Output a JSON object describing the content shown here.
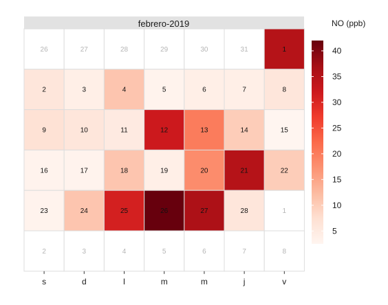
{
  "chart_data": {
    "type": "heatmap",
    "subtype": "calendar",
    "title": "febrero-2019",
    "legend": {
      "title": "NO (ppb)",
      "position": "right",
      "ticks": [
        5,
        10,
        15,
        20,
        25,
        30,
        35,
        40
      ],
      "range": [
        2.5,
        42
      ],
      "colors": [
        "#fff5f0",
        "#fee0d2",
        "#fcbba1",
        "#fc9272",
        "#fb6a4a",
        "#ef3b2c",
        "#cb181d",
        "#a50f15",
        "#67000d"
      ]
    },
    "weekday_labels": [
      "s",
      "d",
      "l",
      "m",
      "m",
      "j",
      "v"
    ],
    "rows": [
      [
        {
          "label": "26",
          "value": null,
          "in_month": false
        },
        {
          "label": "27",
          "value": null,
          "in_month": false
        },
        {
          "label": "28",
          "value": null,
          "in_month": false
        },
        {
          "label": "29",
          "value": null,
          "in_month": false
        },
        {
          "label": "30",
          "value": null,
          "in_month": false
        },
        {
          "label": "31",
          "value": null,
          "in_month": false
        },
        {
          "label": "1",
          "value": 35,
          "in_month": true
        }
      ],
      [
        {
          "label": "2",
          "value": 6,
          "in_month": true
        },
        {
          "label": "3",
          "value": 4,
          "in_month": true
        },
        {
          "label": "4",
          "value": 11,
          "in_month": true
        },
        {
          "label": "5",
          "value": 3,
          "in_month": true
        },
        {
          "label": "6",
          "value": 4,
          "in_month": true
        },
        {
          "label": "7",
          "value": 4,
          "in_month": true
        },
        {
          "label": "8",
          "value": 6,
          "in_month": true
        }
      ],
      [
        {
          "label": "9",
          "value": 7,
          "in_month": true
        },
        {
          "label": "10",
          "value": 6,
          "in_month": true
        },
        {
          "label": "11",
          "value": 5,
          "in_month": true
        },
        {
          "label": "12",
          "value": 32,
          "in_month": true
        },
        {
          "label": "13",
          "value": 20,
          "in_month": true
        },
        {
          "label": "14",
          "value": 10,
          "in_month": true
        },
        {
          "label": "15",
          "value": 2.5,
          "in_month": true
        }
      ],
      [
        {
          "label": "16",
          "value": 3,
          "in_month": true
        },
        {
          "label": "17",
          "value": 3,
          "in_month": true
        },
        {
          "label": "18",
          "value": 11,
          "in_month": true
        },
        {
          "label": "19",
          "value": 4,
          "in_month": true
        },
        {
          "label": "20",
          "value": 18,
          "in_month": true
        },
        {
          "label": "21",
          "value": 35,
          "in_month": true
        },
        {
          "label": "22",
          "value": 10,
          "in_month": true
        }
      ],
      [
        {
          "label": "23",
          "value": 3,
          "in_month": true
        },
        {
          "label": "24",
          "value": 11,
          "in_month": true
        },
        {
          "label": "25",
          "value": 31,
          "in_month": true
        },
        {
          "label": "26",
          "value": 42,
          "in_month": true
        },
        {
          "label": "27",
          "value": 36,
          "in_month": true
        },
        {
          "label": "28",
          "value": 6,
          "in_month": true
        },
        {
          "label": "1",
          "value": null,
          "in_month": false
        }
      ],
      [
        {
          "label": "2",
          "value": null,
          "in_month": false
        },
        {
          "label": "3",
          "value": null,
          "in_month": false
        },
        {
          "label": "4",
          "value": null,
          "in_month": false
        },
        {
          "label": "5",
          "value": null,
          "in_month": false
        },
        {
          "label": "6",
          "value": null,
          "in_month": false
        },
        {
          "label": "7",
          "value": null,
          "in_month": false
        },
        {
          "label": "8",
          "value": null,
          "in_month": false
        }
      ]
    ]
  }
}
